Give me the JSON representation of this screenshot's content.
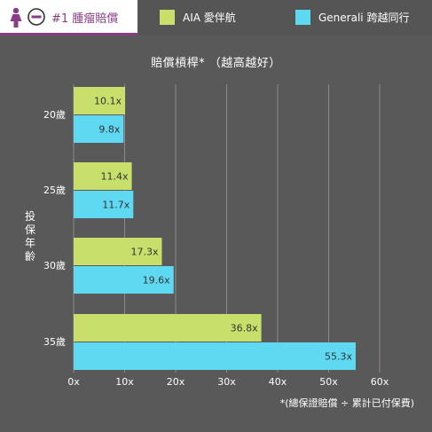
{
  "header": {
    "category": "#1 腫瘤賠償",
    "icons": [
      "female-icon",
      "badge-icon"
    ]
  },
  "colors": {
    "aia": "#c8e06b",
    "generali": "#5fd8f2",
    "accent": "#8a3d86",
    "background": "#595959",
    "grid": "#8a8a8a"
  },
  "chart_data": {
    "type": "bar",
    "orientation": "horizontal",
    "title": "賠償槓桿*  （越高越好）",
    "ylabel": "投保年齡",
    "categories": [
      "20歲",
      "25歲",
      "30歲",
      "35歲"
    ],
    "series": [
      {
        "name": "AIA 愛伴航",
        "values": [
          10.1,
          11.4,
          17.3,
          36.8
        ],
        "labels": [
          "10.1x",
          "11.4x",
          "17.3x",
          "36.8x"
        ]
      },
      {
        "name": "Generali 跨越同行",
        "values": [
          9.8,
          11.7,
          19.6,
          55.3
        ],
        "labels": [
          "9.8x",
          "11.7x",
          "19.6x",
          "55.3x"
        ]
      }
    ],
    "xticks": [
      "0x",
      "10x",
      "20x",
      "30x",
      "40x",
      "50x",
      "60x"
    ],
    "xlim": [
      0,
      60
    ],
    "grid": true,
    "legend_position": "top"
  },
  "footnote": "*(總保證賠償 ÷ 累計已付保費)"
}
